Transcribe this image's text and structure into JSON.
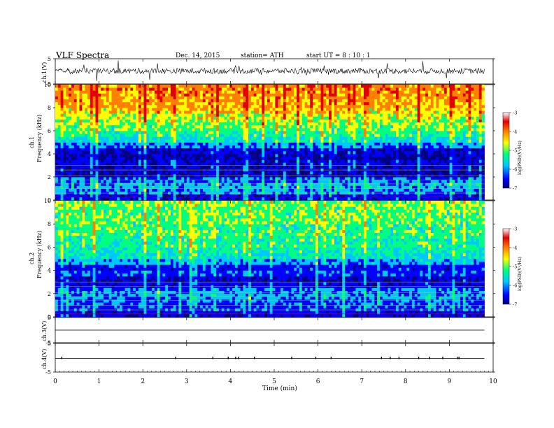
{
  "header": {
    "title": "VLF  Spectra",
    "date": "Dec. 14,  2015",
    "station": "station= ATH",
    "start": "start  UT  =    8 : 10 : 1"
  },
  "colors": {
    "colormap": [
      "#000080",
      "#0000ff",
      "#00c8ff",
      "#00ff80",
      "#ffff00",
      "#ff8000",
      "#e00000",
      "#ffffff"
    ],
    "trace": "#000000"
  },
  "chart_data": [
    {
      "type": "line",
      "panel": "ch1 waveform",
      "ylabel": "ch.1(V)",
      "ytick_labels": [
        "5",
        "-5"
      ],
      "ylim": [
        -5,
        5
      ],
      "x": [
        0,
        1,
        2,
        3,
        4,
        5,
        6,
        7,
        8,
        9,
        9.8
      ],
      "y": [
        0.2,
        0.1,
        0.0,
        0.2,
        0.1,
        0.0,
        0.2,
        0.1,
        0.0,
        0.1,
        0.2
      ]
    },
    {
      "type": "heatmap",
      "panel": "ch1 spectrogram",
      "ylabel_top": "ch.1",
      "ylabel": "Frequency  (kHz)",
      "ytick_labels": [
        "0",
        "2",
        "4",
        "6",
        "8",
        "10"
      ],
      "ylim": [
        0,
        10
      ],
      "xlim": [
        0,
        9.8
      ],
      "freq_kHz": [
        0.5,
        1,
        1.5,
        2,
        2.5,
        3,
        3.5,
        4,
        4.5,
        5,
        5.5,
        6,
        6.5,
        7,
        7.5,
        8,
        8.5,
        9,
        9.5,
        10
      ],
      "median_logPSD": [
        -6.3,
        -5.8,
        -5.6,
        -5.9,
        -6.6,
        -6.5,
        -6.4,
        -6.7,
        -6.5,
        -5.8,
        -5.3,
        -5.0,
        -4.8,
        -4.6,
        -4.4,
        -4.2,
        -4.0,
        -3.9,
        -3.8,
        -3.8
      ],
      "colorbar": {
        "label": "log(PSD)(V²/Hz)",
        "ticks": [
          "-3",
          "-4",
          "-5",
          "-6",
          "-7"
        ],
        "range": [
          -7,
          -3
        ]
      }
    },
    {
      "type": "heatmap",
      "panel": "ch2 spectrogram",
      "ylabel_top": "ch.2",
      "ylabel": "Frequency  (kHz)",
      "ytick_labels": [
        "0",
        "2",
        "4",
        "6",
        "8",
        "10"
      ],
      "ylim": [
        0,
        10
      ],
      "xlim": [
        0,
        9.8
      ],
      "freq_kHz": [
        0.5,
        1,
        1.5,
        2,
        2.5,
        3,
        3.5,
        4,
        4.5,
        5,
        5.5,
        6,
        6.5,
        7,
        7.5,
        8,
        8.5,
        9,
        9.5,
        10
      ],
      "median_logPSD": [
        -6.4,
        -6.0,
        -5.9,
        -5.7,
        -5.8,
        -6.3,
        -6.5,
        -6.0,
        -6.2,
        -5.6,
        -5.3,
        -5.1,
        -5.0,
        -5.0,
        -4.9,
        -4.9,
        -4.8,
        -4.8,
        -4.8,
        -4.7
      ],
      "colorbar": {
        "label": "log(PSD)(V²/Hz)",
        "ticks": [
          "-3",
          "-4",
          "-5",
          "-6",
          "-7"
        ],
        "range": [
          -7,
          -3
        ]
      }
    },
    {
      "type": "line",
      "panel": "ch3 waveform",
      "ylabel": "ch.3(V)",
      "ytick_labels": [
        "5",
        "-5"
      ],
      "ylim": [
        -5,
        5
      ],
      "x": [
        0,
        9.8
      ],
      "y": [
        0,
        0
      ]
    },
    {
      "type": "line",
      "panel": "ch4 waveform",
      "ylabel": "ch.4(V)",
      "ytick_labels": [
        "5",
        "-5"
      ],
      "ylim": [
        -5,
        5
      ],
      "x": [
        0,
        9.8
      ],
      "y": [
        0,
        0
      ],
      "spike_times_min": [
        0.15,
        2.75,
        3.6,
        3.95,
        4.12,
        4.18,
        4.55,
        5.4,
        5.95,
        6.3,
        7.45,
        7.65,
        7.85,
        8.3,
        8.55,
        8.85,
        9.18,
        9.22
      ]
    }
  ],
  "axis": {
    "xlabel": "Time  (min)",
    "xticks": [
      "0",
      "1",
      "2",
      "3",
      "4",
      "5",
      "6",
      "7",
      "8",
      "9",
      "10"
    ],
    "xlim": [
      0,
      10
    ]
  }
}
